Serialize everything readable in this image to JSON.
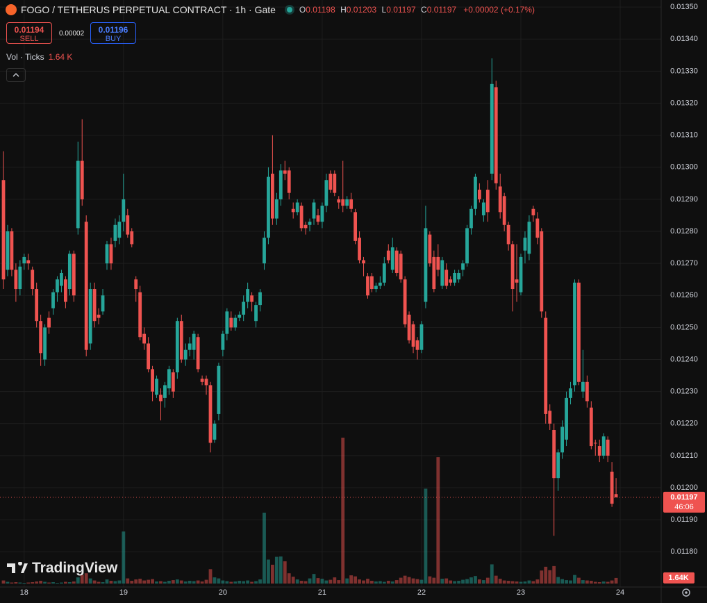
{
  "header": {
    "title": "FOGO / TETHERUS PERPETUAL CONTRACT · 1h · Gate",
    "ohlc": [
      {
        "key": "O",
        "value": "0.01198"
      },
      {
        "key": "H",
        "value": "0.01203"
      },
      {
        "key": "L",
        "value": "0.01197"
      },
      {
        "key": "C",
        "value": "0.01197"
      }
    ],
    "change": "+0.00002 (+0.17%)",
    "sell": {
      "price": "0.01194",
      "label": "SELL"
    },
    "spread": "0.00002",
    "buy": {
      "price": "0.01196",
      "label": "BUY"
    },
    "volume_indicator": {
      "name": "Vol · Ticks",
      "value": "1.64 K"
    },
    "logo": "TradingView"
  },
  "chart_data": {
    "type": "candlestick",
    "up_color": "#26a69a",
    "down_color": "#ef5350",
    "grid": true,
    "ylim": [
      0.01169,
      0.013522
    ],
    "yticks": [
      {
        "value": 0.0135,
        "label": "0.01350"
      },
      {
        "value": 0.0134,
        "label": "0.01340"
      },
      {
        "value": 0.0133,
        "label": "0.01330"
      },
      {
        "value": 0.0132,
        "label": "0.01320"
      },
      {
        "value": 0.0131,
        "label": "0.01310"
      },
      {
        "value": 0.013,
        "label": "0.01300"
      },
      {
        "value": 0.0129,
        "label": "0.01290"
      },
      {
        "value": 0.0128,
        "label": "0.01280"
      },
      {
        "value": 0.0127,
        "label": "0.01270"
      },
      {
        "value": 0.0126,
        "label": "0.01260"
      },
      {
        "value": 0.0125,
        "label": "0.01250"
      },
      {
        "value": 0.0124,
        "label": "0.01240"
      },
      {
        "value": 0.0123,
        "label": "0.01230"
      },
      {
        "value": 0.0122,
        "label": "0.01220"
      },
      {
        "value": 0.0121,
        "label": "0.01210"
      },
      {
        "value": 0.012,
        "label": "0.01200"
      },
      {
        "value": 0.0119,
        "label": "0.01190"
      },
      {
        "value": 0.0118,
        "label": "0.01180"
      }
    ],
    "xticks": [
      {
        "value": 5,
        "label": "18"
      },
      {
        "value": 29,
        "label": "19"
      },
      {
        "value": 53,
        "label": "20"
      },
      {
        "value": 77,
        "label": "21"
      },
      {
        "value": 101,
        "label": "22"
      },
      {
        "value": 125,
        "label": "23"
      },
      {
        "value": 149,
        "label": "24"
      }
    ],
    "open": [
      0.01296,
      0.01268,
      0.0128,
      0.01268,
      0.01262,
      0.0127,
      0.01271,
      0.01268,
      0.01262,
      0.01252,
      0.0124,
      0.01253,
      0.01256,
      0.01261,
      0.01263,
      0.01265,
      0.01262,
      0.01273,
      0.01281,
      0.01302,
      0.01283,
      0.01245,
      0.01262,
      0.01254,
      0.01255,
      0.0127,
      0.01276,
      0.01277,
      0.01278,
      0.01283,
      0.01285,
      0.0128,
      0.01265,
      0.01261,
      0.01248,
      0.01245,
      0.01237,
      0.01229,
      0.01229,
      0.01228,
      0.01231,
      0.01236,
      0.01236,
      0.01252,
      0.0124,
      0.01243,
      0.01243,
      0.01247,
      0.01234,
      0.01234,
      0.01232,
      0.01215,
      0.01223,
      0.01243,
      0.01248,
      0.01253,
      0.0125,
      0.01253,
      0.01254,
      0.01258,
      0.0126,
      0.01252,
      0.01257,
      0.0127,
      0.01278,
      0.01298,
      0.01284,
      0.0129,
      0.01299,
      0.01299,
      0.01287,
      0.01286,
      0.01288,
      0.01282,
      0.01282,
      0.01284,
      0.01285,
      0.01283,
      0.01288,
      0.01298,
      0.01298,
      0.0129,
      0.0129,
      0.01288,
      0.0129,
      0.01286,
      0.01278,
      0.01271,
      0.01266,
      0.01266,
      0.01262,
      0.01263,
      0.01264,
      0.01274,
      0.01268,
      0.01274,
      0.01273,
      0.01265,
      0.01254,
      0.01251,
      0.01246,
      0.01243,
      0.01258,
      0.01279,
      0.01272,
      0.01272,
      0.01263,
      0.01268,
      0.01265,
      0.01264,
      0.01265,
      0.01268,
      0.0127,
      0.01281,
      0.01287,
      0.01293,
      0.01285,
      0.01293,
      0.01298,
      0.01325,
      0.01294,
      0.01291,
      0.01282,
      0.01276,
      0.01265,
      0.01261,
      0.01274,
      0.01273,
      0.01287,
      0.01284,
      0.0128,
      0.01253,
      0.01224,
      0.01218,
      0.01203,
      0.01211,
      0.01215,
      0.01228,
      0.01232,
      0.01264,
      0.0123,
      0.01233,
      0.01225,
      0.01214,
      0.01213,
      0.0121,
      0.01215,
      0.01205,
      0.01198
    ],
    "high": [
      0.01305,
      0.01282,
      0.01281,
      0.0127,
      0.01271,
      0.01273,
      0.01273,
      0.01269,
      0.01264,
      0.01254,
      0.01251,
      0.01255,
      0.01262,
      0.01266,
      0.01268,
      0.01266,
      0.01274,
      0.01274,
      0.01308,
      0.01315,
      0.01285,
      0.01264,
      0.01264,
      0.01256,
      0.01262,
      0.01277,
      0.01278,
      0.01284,
      0.01285,
      0.01298,
      0.01287,
      0.01281,
      0.01266,
      0.01263,
      0.0125,
      0.01247,
      0.01238,
      0.01235,
      0.01231,
      0.01233,
      0.01238,
      0.01237,
      0.01253,
      0.01254,
      0.01245,
      0.01247,
      0.01249,
      0.01248,
      0.01235,
      0.01235,
      0.01233,
      0.01221,
      0.01239,
      0.01249,
      0.01256,
      0.01255,
      0.01254,
      0.01255,
      0.0126,
      0.01264,
      0.01261,
      0.01258,
      0.01262,
      0.0128,
      0.013,
      0.0131,
      0.01292,
      0.01301,
      0.01302,
      0.013,
      0.01289,
      0.0129,
      0.01289,
      0.01283,
      0.01284,
      0.0129,
      0.01287,
      0.01289,
      0.01298,
      0.01299,
      0.01299,
      0.01291,
      0.01302,
      0.01291,
      0.01292,
      0.01287,
      0.0128,
      0.01272,
      0.01267,
      0.01267,
      0.01264,
      0.01266,
      0.01272,
      0.01276,
      0.01278,
      0.01275,
      0.01274,
      0.01266,
      0.01255,
      0.01252,
      0.01247,
      0.01252,
      0.01288,
      0.0128,
      0.01274,
      0.01276,
      0.01272,
      0.0127,
      0.01266,
      0.01268,
      0.01268,
      0.01271,
      0.01282,
      0.01288,
      0.01298,
      0.01295,
      0.0129,
      0.01296,
      0.01334,
      0.01327,
      0.01298,
      0.01292,
      0.01283,
      0.01277,
      0.01276,
      0.01273,
      0.0128,
      0.01285,
      0.01288,
      0.01286,
      0.01281,
      0.01255,
      0.01226,
      0.0122,
      0.01212,
      0.01221,
      0.0123,
      0.01233,
      0.01265,
      0.01265,
      0.01243,
      0.01235,
      0.01227,
      0.01215,
      0.01215,
      0.01217,
      0.01216,
      0.01208,
      0.01203
    ],
    "low": [
      0.01262,
      0.01266,
      0.01266,
      0.01258,
      0.0126,
      0.01268,
      0.01268,
      0.0126,
      0.0125,
      0.01238,
      0.01238,
      0.01248,
      0.01254,
      0.01258,
      0.01261,
      0.01256,
      0.0126,
      0.01258,
      0.01279,
      0.01288,
      0.01241,
      0.01243,
      0.0125,
      0.01251,
      0.01254,
      0.01268,
      0.01268,
      0.01275,
      0.01276,
      0.0128,
      0.01278,
      0.01275,
      0.01258,
      0.01246,
      0.01243,
      0.01236,
      0.01227,
      0.01228,
      0.01221,
      0.01225,
      0.01229,
      0.01228,
      0.01234,
      0.01239,
      0.01238,
      0.01241,
      0.0124,
      0.01236,
      0.01232,
      0.01229,
      0.01211,
      0.01214,
      0.01221,
      0.01241,
      0.01246,
      0.01249,
      0.01249,
      0.01252,
      0.01252,
      0.01256,
      0.01255,
      0.0125,
      0.01255,
      0.01268,
      0.01276,
      0.01282,
      0.01282,
      0.01288,
      0.01296,
      0.0129,
      0.01284,
      0.01285,
      0.0128,
      0.01279,
      0.0128,
      0.01282,
      0.01282,
      0.01281,
      0.01286,
      0.01292,
      0.01291,
      0.01287,
      0.01286,
      0.01287,
      0.01286,
      0.01276,
      0.0127,
      0.01266,
      0.01259,
      0.01261,
      0.01261,
      0.01262,
      0.01263,
      0.0127,
      0.01267,
      0.01266,
      0.01264,
      0.0125,
      0.01245,
      0.01242,
      0.0124,
      0.01242,
      0.01256,
      0.01269,
      0.01261,
      0.01266,
      0.01262,
      0.01262,
      0.01263,
      0.01263,
      0.01264,
      0.01266,
      0.01269,
      0.01279,
      0.01285,
      0.01289,
      0.01283,
      0.01283,
      0.01296,
      0.01293,
      0.01284,
      0.0128,
      0.01274,
      0.01255,
      0.01258,
      0.0126,
      0.0127,
      0.01271,
      0.01283,
      0.01276,
      0.01253,
      0.0122,
      0.01218,
      0.01185,
      0.01199,
      0.01209,
      0.01213,
      0.01226,
      0.0123,
      0.01232,
      0.01228,
      0.01225,
      0.01212,
      0.0121,
      0.01208,
      0.01209,
      0.01208,
      0.01194,
      0.01197
    ],
    "close": [
      0.01265,
      0.0128,
      0.01268,
      0.01262,
      0.01269,
      0.01272,
      0.0127,
      0.01262,
      0.01252,
      0.01242,
      0.0125,
      0.0125,
      0.01261,
      0.01265,
      0.01267,
      0.01258,
      0.01273,
      0.0126,
      0.01302,
      0.0129,
      0.01243,
      0.01262,
      0.01252,
      0.01253,
      0.0126,
      0.01276,
      0.0127,
      0.01282,
      0.01283,
      0.0129,
      0.01279,
      0.01276,
      0.01262,
      0.01247,
      0.01245,
      0.01237,
      0.0123,
      0.01234,
      0.01227,
      0.01232,
      0.01237,
      0.0123,
      0.01252,
      0.0124,
      0.01243,
      0.01245,
      0.01248,
      0.01237,
      0.01233,
      0.01232,
      0.01214,
      0.0122,
      0.01238,
      0.01248,
      0.01255,
      0.0125,
      0.01253,
      0.01254,
      0.01258,
      0.01262,
      0.01258,
      0.01257,
      0.01261,
      0.01278,
      0.01297,
      0.01284,
      0.0129,
      0.01299,
      0.01298,
      0.01292,
      0.01286,
      0.01289,
      0.01281,
      0.01281,
      0.01283,
      0.01289,
      0.01283,
      0.01288,
      0.01296,
      0.01293,
      0.01292,
      0.01289,
      0.01288,
      0.0129,
      0.01287,
      0.01277,
      0.01271,
      0.0127,
      0.0126,
      0.01262,
      0.01263,
      0.01264,
      0.0127,
      0.01271,
      0.01275,
      0.01267,
      0.01265,
      0.01251,
      0.01246,
      0.01244,
      0.01243,
      0.01251,
      0.01281,
      0.0127,
      0.01262,
      0.01268,
      0.01271,
      0.01263,
      0.01264,
      0.01267,
      0.01267,
      0.0127,
      0.01281,
      0.01287,
      0.01297,
      0.0129,
      0.01289,
      0.01286,
      0.01326,
      0.01295,
      0.01286,
      0.01282,
      0.01276,
      0.01262,
      0.01264,
      0.01272,
      0.01278,
      0.01283,
      0.01285,
      0.01278,
      0.01255,
      0.01223,
      0.0122,
      0.01203,
      0.01211,
      0.01219,
      0.01228,
      0.01231,
      0.01264,
      0.01233,
      0.01233,
      0.01227,
      0.01213,
      0.01214,
      0.0121,
      0.01216,
      0.0121,
      0.01195,
      0.01197
    ],
    "volume": [
      900,
      500,
      300,
      400,
      300,
      200,
      300,
      400,
      600,
      800,
      500,
      300,
      400,
      200,
      300,
      500,
      400,
      600,
      1800,
      2500,
      3000,
      1500,
      900,
      500,
      400,
      1200,
      800,
      700,
      900,
      15200,
      1500,
      800,
      1200,
      1400,
      900,
      1100,
      1300,
      600,
      700,
      500,
      800,
      1000,
      1200,
      900,
      600,
      800,
      700,
      900,
      600,
      1100,
      4200,
      1800,
      1500,
      900,
      700,
      500,
      600,
      800,
      700,
      900,
      500,
      700,
      1200,
      20700,
      7000,
      5500,
      7800,
      7900,
      6500,
      3000,
      2000,
      1200,
      800,
      700,
      1500,
      2800,
      1600,
      1400,
      900,
      1100,
      1800,
      1000,
      42600,
      1500,
      2400,
      2100,
      1200,
      900,
      1400,
      800,
      600,
      700,
      500,
      800,
      600,
      1000,
      1700,
      2300,
      1900,
      1500,
      1300,
      1100,
      27700,
      2100,
      1700,
      36900,
      1400,
      1500,
      900,
      700,
      800,
      1100,
      1300,
      1800,
      2200,
      1200,
      1000,
      1700,
      5600,
      2300,
      1400,
      900,
      800,
      700,
      600,
      500,
      600,
      900,
      700,
      1200,
      3800,
      4900,
      3900,
      5100,
      1900,
      1300,
      1000,
      900,
      2500,
      1700,
      1000,
      900,
      800,
      500,
      400,
      600,
      500,
      900,
      1640
    ],
    "last_price": 0.01197,
    "countdown": "46:06",
    "last_volume_label": "1.64K"
  }
}
